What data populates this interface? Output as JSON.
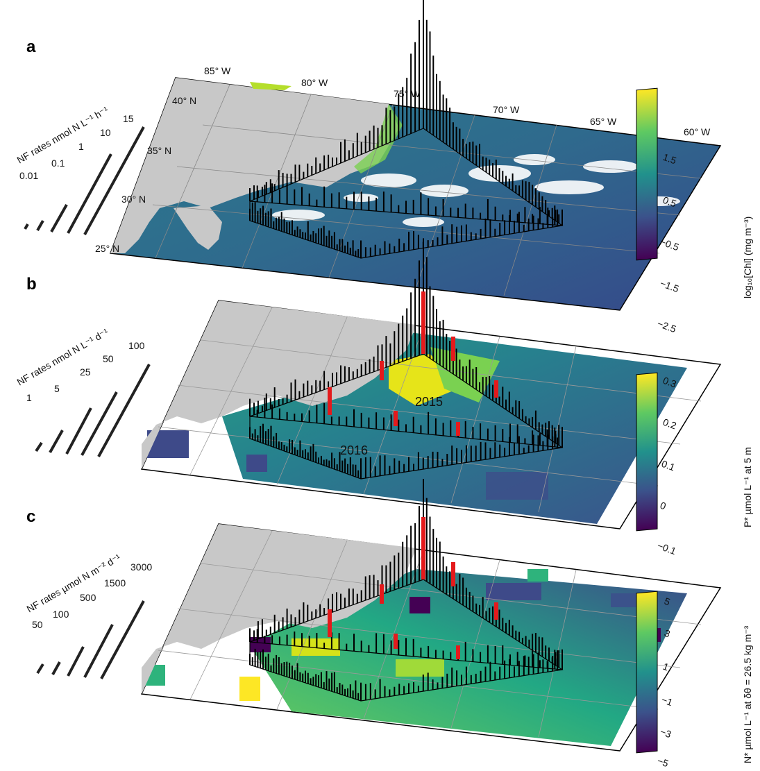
{
  "panels": [
    {
      "letter": "a",
      "legend_title": "NF rates nmol N L⁻¹ h⁻¹",
      "legend_values": [
        "0.01",
        "0.1",
        "1",
        "10",
        "15"
      ],
      "colorbar_label": "log₁₀[Chl] (mg m⁻³)",
      "colorbar_ticks": [
        "1.5",
        "0.5",
        "−0.5",
        "−1.5",
        "−2.5"
      ],
      "colorbar_colors": [
        "#fde725",
        "#5ec962",
        "#21918c",
        "#3b528b",
        "#440154"
      ],
      "lon_labels": [
        "85° W",
        "80° W",
        "75° W",
        "70° W",
        "65° W",
        "60° W"
      ],
      "lat_labels": [
        "40° N",
        "35° N",
        "30° N",
        "25° N"
      ]
    },
    {
      "letter": "b",
      "legend_title": "NF rates nmol N L⁻¹ d⁻¹",
      "legend_values": [
        "1",
        "5",
        "25",
        "50",
        "100"
      ],
      "colorbar_label": "P* µmol L⁻¹ at 5 m",
      "colorbar_ticks": [
        "0.3",
        "0.2",
        "0.1",
        "0",
        "−0.1"
      ],
      "colorbar_colors": [
        "#fde725",
        "#5ec962",
        "#21918c",
        "#3b528b",
        "#440154"
      ],
      "year_labels": [
        "2015",
        "2016"
      ]
    },
    {
      "letter": "c",
      "legend_title": "NF rates µmol N m⁻² d⁻¹",
      "legend_values": [
        "50",
        "100",
        "500",
        "1500",
        "3000"
      ],
      "colorbar_label": "N* µmol L⁻¹ at δθ = 26.5 kg m⁻³",
      "colorbar_ticks": [
        "5",
        "3",
        "1",
        "−1",
        "−3",
        "−5"
      ],
      "colorbar_colors": [
        "#fde725",
        "#5ec962",
        "#21918c",
        "#3b528b",
        "#440154"
      ]
    }
  ],
  "colors": {
    "land": "#c8c8c8",
    "ocean_low": "#3b528b",
    "ocean_mid": "#21918c",
    "ocean_high": "#5ec962",
    "highlight": "#fde725",
    "bar": "#000000",
    "red_bar": "#e41a1c"
  }
}
